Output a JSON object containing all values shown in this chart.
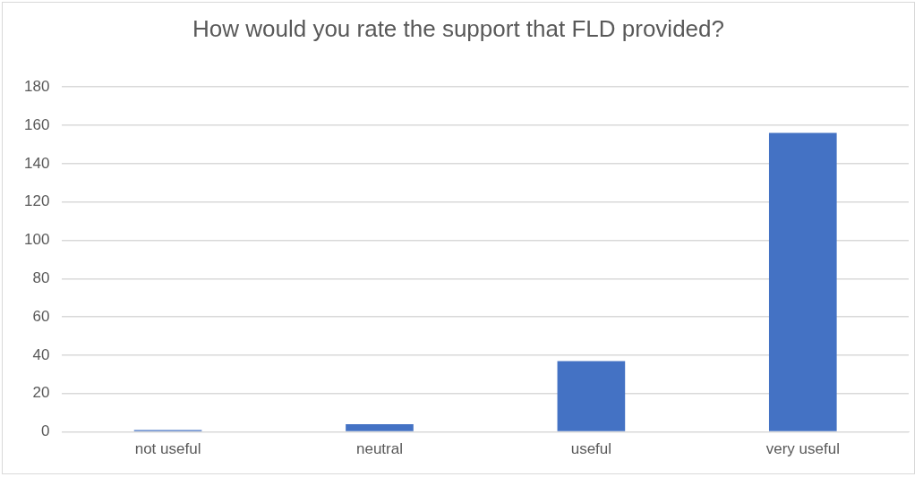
{
  "chart_data": {
    "type": "bar",
    "title": "How would you rate the support that FLD provided?",
    "categories": [
      "not useful",
      "neutral",
      "useful",
      "very useful"
    ],
    "values": [
      1,
      4,
      37,
      156
    ],
    "color": "#4472c4",
    "ylim": [
      0,
      180
    ],
    "yticks": [
      0,
      20,
      40,
      60,
      80,
      100,
      120,
      140,
      160,
      180
    ],
    "grid": "y",
    "legend": false
  }
}
